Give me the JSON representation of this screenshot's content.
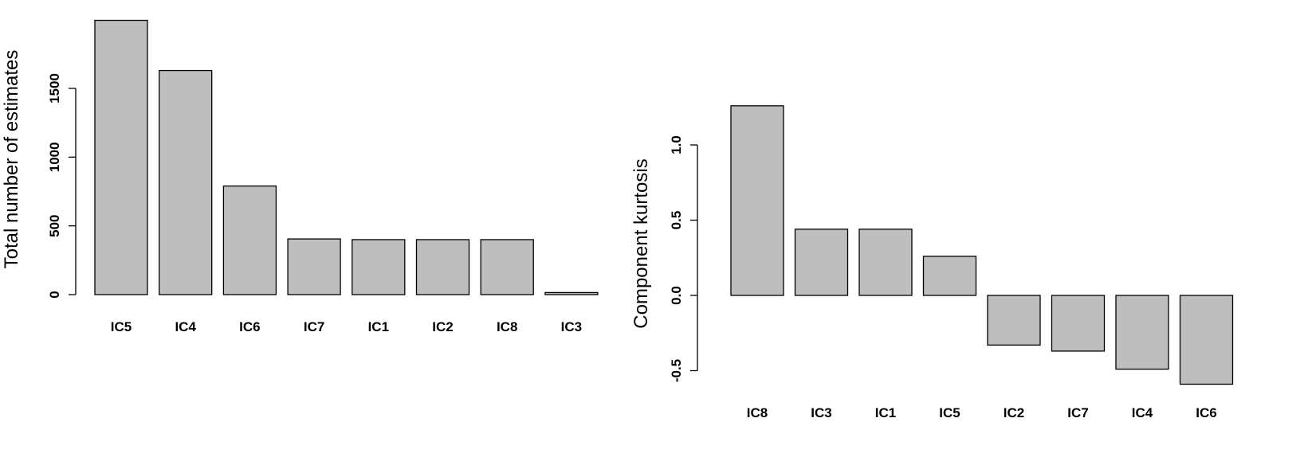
{
  "chart_data": [
    {
      "type": "bar",
      "title": "",
      "xlabel": "",
      "ylabel": "Total number of estimates",
      "categories": [
        "IC5",
        "IC4",
        "IC6",
        "IC7",
        "IC1",
        "IC2",
        "IC8",
        "IC3"
      ],
      "values": [
        1995,
        1630,
        790,
        405,
        400,
        400,
        400,
        15
      ],
      "yticks": [
        0,
        500,
        1000,
        1500
      ],
      "ytick_labels": [
        "0",
        "500",
        "1000",
        "1500"
      ],
      "ylim": [
        0,
        2000
      ],
      "bar_color": "#bebebe",
      "grid": false
    },
    {
      "type": "bar",
      "title": "",
      "xlabel": "",
      "ylabel": "Component kurtosis",
      "categories": [
        "IC8",
        "IC3",
        "IC1",
        "IC5",
        "IC2",
        "IC7",
        "IC4",
        "IC6"
      ],
      "values": [
        1.26,
        0.44,
        0.44,
        0.26,
        -0.33,
        -0.37,
        -0.49,
        -0.59
      ],
      "yticks": [
        -0.5,
        0,
        0.5,
        1
      ],
      "ytick_labels": [
        "-0.5",
        "0.0",
        "0.5",
        "1.0"
      ],
      "ylim": [
        -0.6,
        1.27
      ],
      "bar_color": "#bebebe",
      "grid": false
    }
  ]
}
